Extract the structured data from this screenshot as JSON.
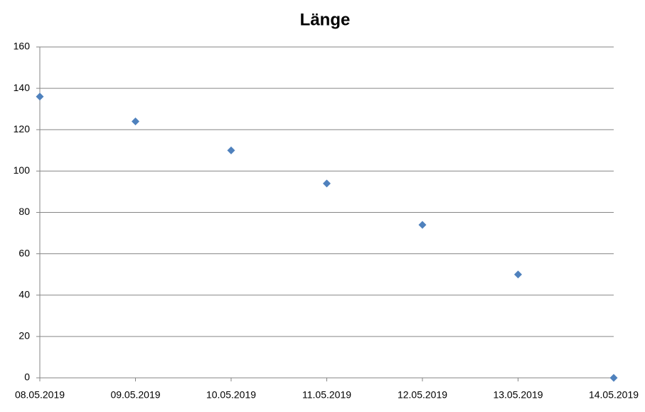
{
  "chart_data": {
    "type": "scatter",
    "title": "Länge",
    "categories": [
      "08.05.2019",
      "09.05.2019",
      "10.05.2019",
      "11.05.2019",
      "12.05.2019",
      "13.05.2019",
      "14.05.2019"
    ],
    "values": [
      136,
      124,
      110,
      94,
      74,
      50,
      0
    ],
    "color": "#4f81bd",
    "ylim": [
      0,
      160
    ],
    "yticks": [
      0,
      20,
      40,
      60,
      80,
      100,
      120,
      140,
      160
    ],
    "grid": true
  }
}
